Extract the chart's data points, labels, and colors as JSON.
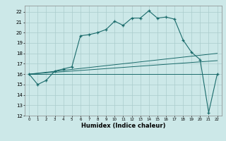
{
  "title": "",
  "xlabel": "Humidex (Indice chaleur)",
  "bg_color": "#cce8e8",
  "grid_color": "#aacccc",
  "line_color": "#1a6b6b",
  "xlim": [
    -0.5,
    22.5
  ],
  "ylim": [
    12,
    22.6
  ],
  "yticks": [
    12,
    13,
    14,
    15,
    16,
    17,
    18,
    19,
    20,
    21,
    22
  ],
  "xticks": [
    0,
    1,
    2,
    3,
    4,
    5,
    6,
    7,
    8,
    9,
    10,
    11,
    12,
    13,
    14,
    15,
    16,
    17,
    18,
    19,
    20,
    21,
    22
  ],
  "line1_x": [
    0,
    1,
    2,
    3,
    4,
    5,
    6,
    7,
    8,
    9,
    10,
    11,
    12,
    13,
    14,
    15,
    16,
    17,
    18,
    19,
    20,
    21,
    22
  ],
  "line1_y": [
    16.0,
    15.0,
    15.4,
    16.3,
    16.5,
    16.7,
    19.7,
    19.8,
    20.0,
    20.3,
    21.1,
    20.7,
    21.4,
    21.4,
    22.1,
    21.4,
    21.5,
    21.3,
    19.3,
    18.1,
    17.4,
    12.3,
    16.0
  ],
  "line2_x": [
    0,
    22
  ],
  "line2_y": [
    16.0,
    16.0
  ],
  "line3_x": [
    0,
    22
  ],
  "line3_y": [
    16.0,
    17.3
  ],
  "line4_x": [
    0,
    22
  ],
  "line4_y": [
    16.0,
    18.0
  ],
  "xlabel_fontsize": 6,
  "ytick_fontsize": 5,
  "xtick_fontsize": 4
}
